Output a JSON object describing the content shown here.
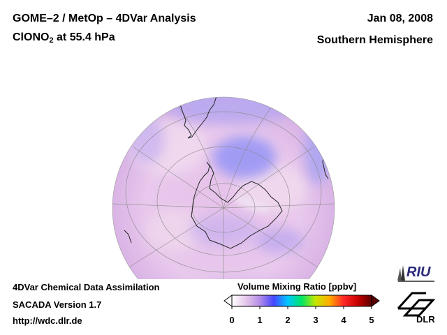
{
  "header": {
    "title": "GOME–2 / MetOp – 4DVar Analysis",
    "species_main": "ClONO",
    "species_sub": "2",
    "species_rest": " at 55.4 hPa",
    "date": "Jan 08, 2008",
    "region": "Southern Hemisphere"
  },
  "footer": {
    "line1": "4DVar Chemical Data Assimilation",
    "line2": "SACADA Version 1.7",
    "line3": "http://wdc.dlr.de"
  },
  "colorbar": {
    "title": "Volume Mixing Ratio [ppbv]",
    "ticks": [
      "0",
      "1",
      "2",
      "3",
      "4",
      "5"
    ],
    "stops": [
      "#ffffff",
      "#e6c8ec",
      "#b48ce6",
      "#4646ff",
      "#00c8ff",
      "#00e664",
      "#c8e600",
      "#ffaa00",
      "#ff2828",
      "#c80000",
      "#5a0000"
    ]
  },
  "logos": {
    "riu": "RIU",
    "dlr": "DLR"
  },
  "colors": {
    "background_field": "#eacbea",
    "low_value_patch": "#b4a4f0",
    "very_low_patch": "#9f9cf4",
    "grid": "#8a8a8a",
    "coastline": "#222222"
  }
}
